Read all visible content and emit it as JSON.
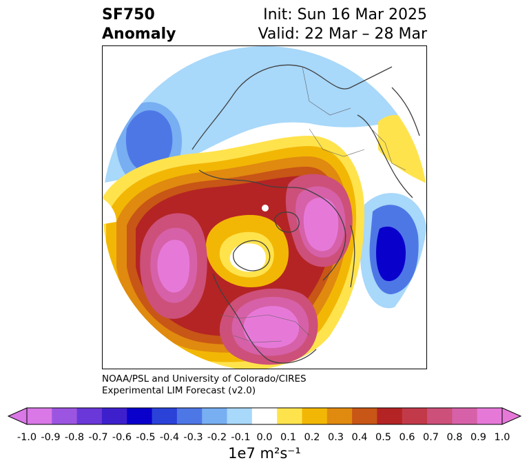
{
  "header": {
    "variable": "SF750",
    "field_type": "Anomaly",
    "init": "Init: Sun 16 Mar 2025",
    "valid": "Valid: 22 Mar – 28 Mar"
  },
  "credit": {
    "line1": "NOAA/PSL and University of Colorado/CIRES",
    "line2": "Experimental LIM Forecast (v2.0)"
  },
  "colorbar": {
    "unit_label": "1e7 m²s⁻¹",
    "ticks": [
      "-1.0",
      "-0.9",
      "-0.8",
      "-0.7",
      "-0.6",
      "-0.5",
      "-0.4",
      "-0.3",
      "-0.2",
      "-0.1",
      "0.0",
      "0.1",
      "0.2",
      "0.3",
      "0.4",
      "0.5",
      "0.6",
      "0.7",
      "0.8",
      "0.9",
      "1.0"
    ],
    "colors": [
      "#d978e6",
      "#9c55e0",
      "#6a38d8",
      "#3d20cc",
      "#0a00cc",
      "#2a42d8",
      "#4e77e6",
      "#78aef2",
      "#a8d8fa",
      "#ffffff",
      "#ffe34d",
      "#f2b705",
      "#e08a10",
      "#c85616",
      "#b42424",
      "#c23a4a",
      "#cc5079",
      "#d661a8",
      "#e679d8"
    ],
    "under_color": "#d978e6",
    "over_color": "#e679d8"
  },
  "map": {
    "projection": "north polar stereographic",
    "fields": [
      {
        "name": "pacific-positive-ring",
        "level": 0.6
      },
      {
        "name": "north-america-center",
        "level": 0.9
      },
      {
        "name": "europe-positive",
        "level": 0.9
      },
      {
        "name": "west-pacific-negative",
        "level": -0.5
      },
      {
        "name": "asia-pacific-negative",
        "level": -0.3
      },
      {
        "name": "southeast-asia-negative",
        "level": -0.6
      },
      {
        "name": "arctic-core",
        "level": 0.0
      }
    ]
  }
}
